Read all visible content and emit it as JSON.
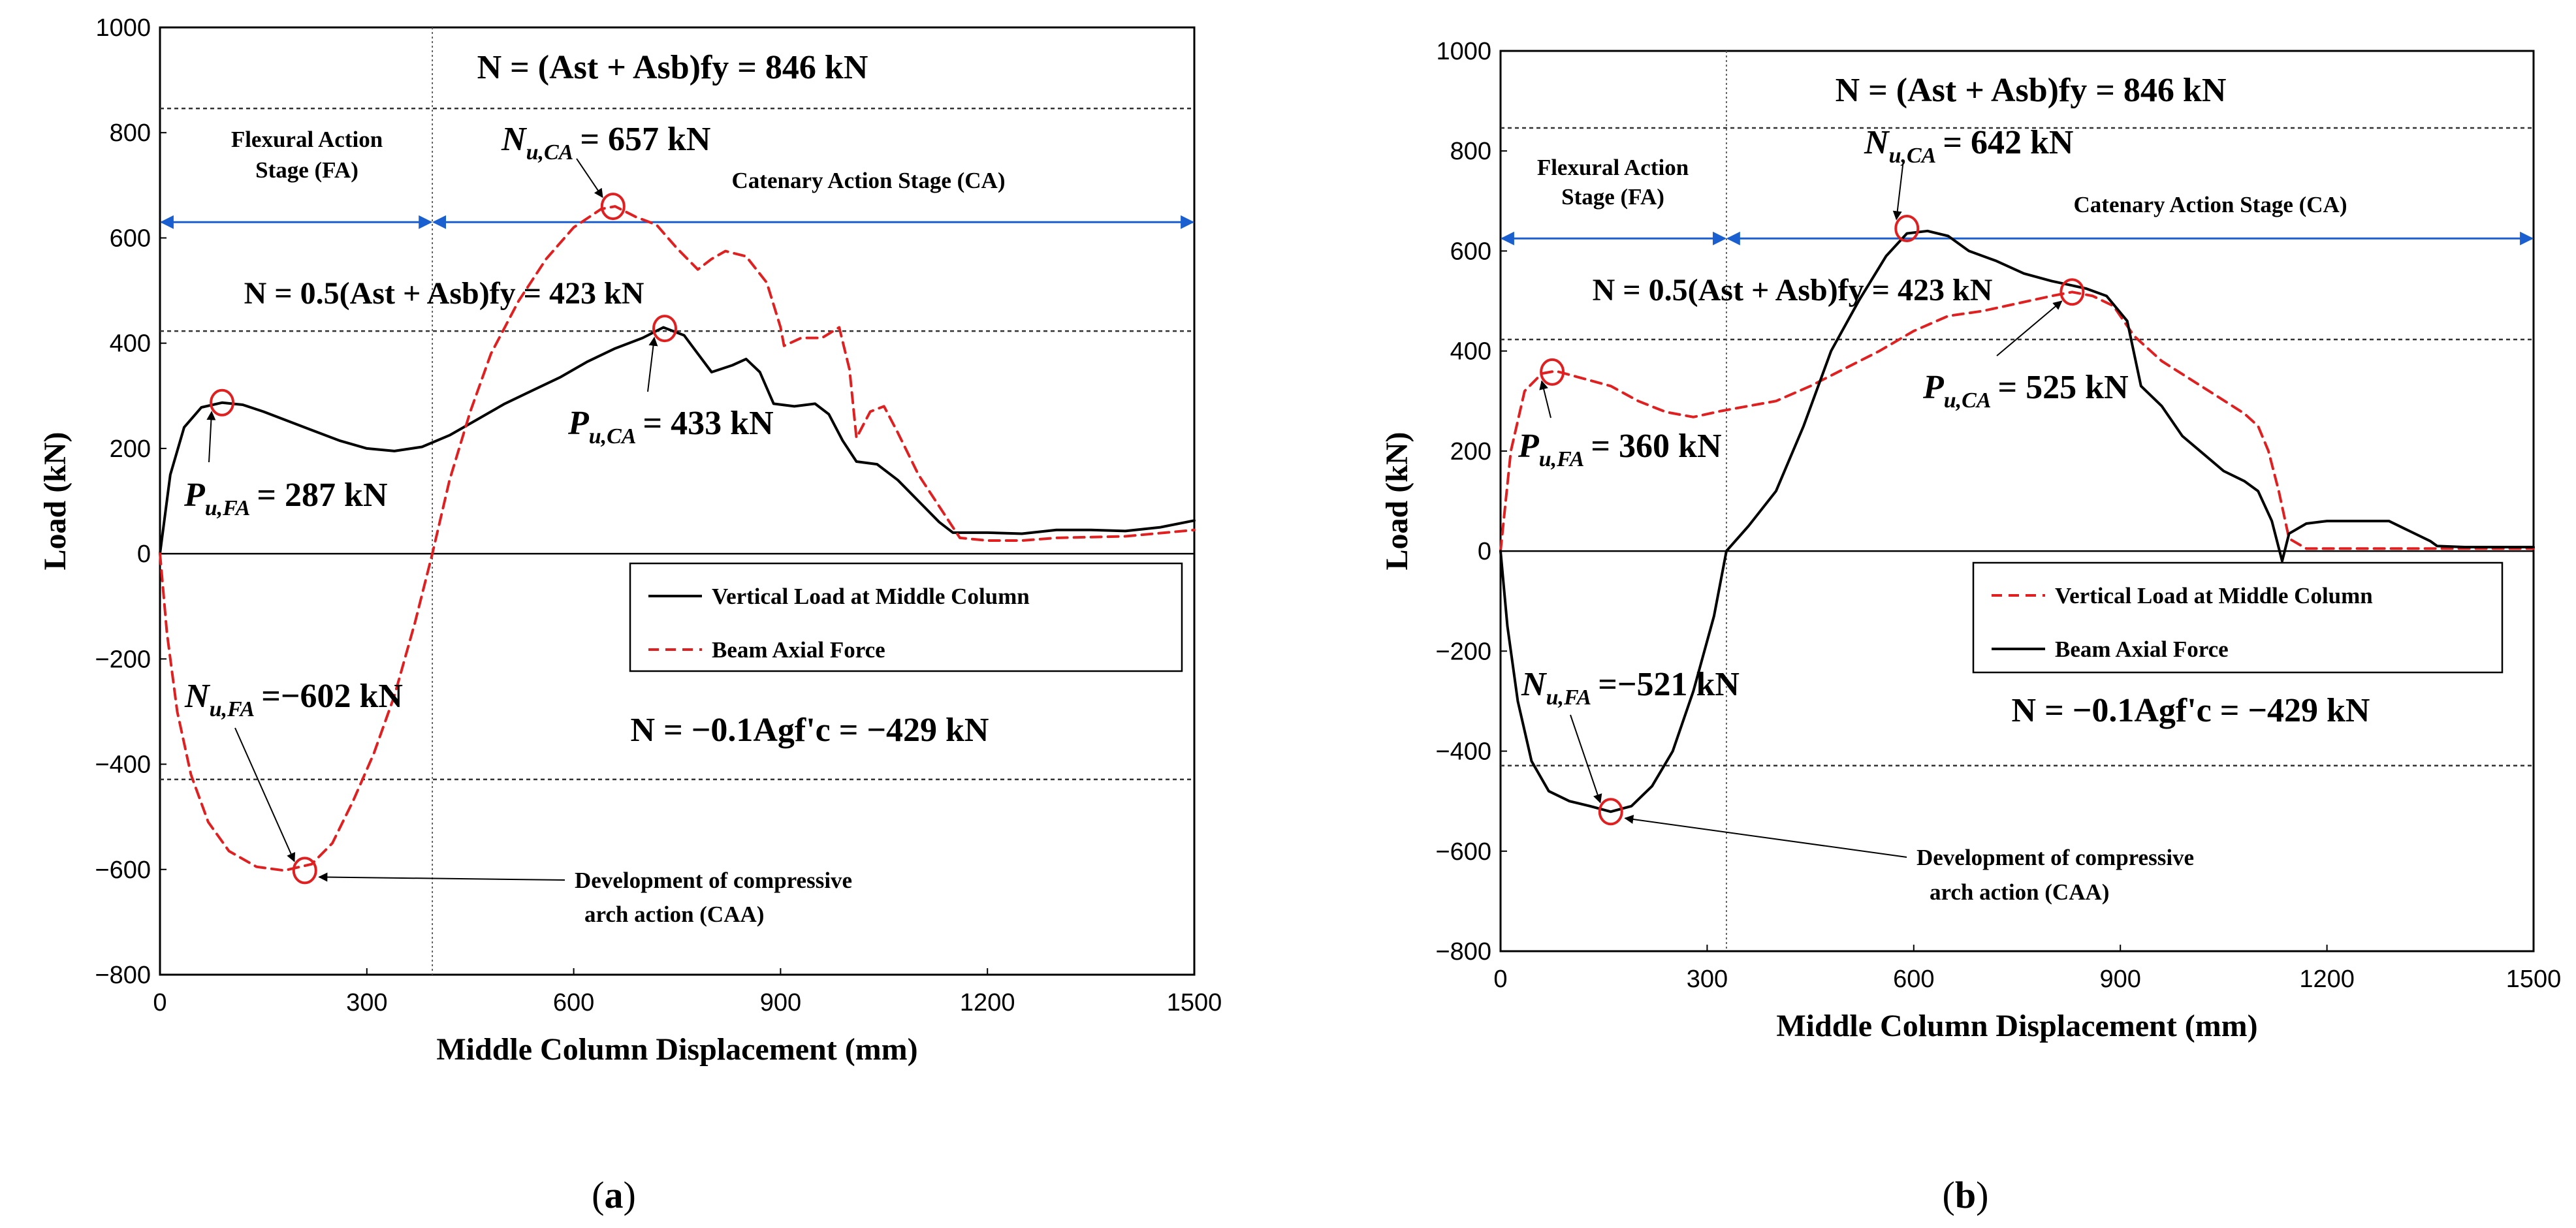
{
  "chart_data": [
    {
      "type": "line",
      "panel": "(a)",
      "panel_paren_open": "(",
      "panel_letter": "a",
      "panel_paren_close": ")",
      "xlabel": "Middle Column Displacement (mm)",
      "ylabel": "Load (kN)",
      "xlim": [
        0,
        1500
      ],
      "ylim": [
        -800,
        1000
      ],
      "x_ticks": [
        "0",
        "300",
        "600",
        "900",
        "1200",
        "1500"
      ],
      "y_ticks": [
        "1000",
        "800",
        "600",
        "400",
        "200",
        "0",
        "−200",
        "−400",
        "−600",
        "−800"
      ],
      "stage_divider_x": 395,
      "stage_arrow_y": 630,
      "stages": {
        "fa_line1": "Flexural Action",
        "fa_line2": "Stage (FA)",
        "ca": "Catenary Action Stage (CA)"
      },
      "reference_lines": [
        {
          "y": 846,
          "label_id": "yield_full"
        },
        {
          "y": 423,
          "label_id": "yield_half"
        },
        {
          "y": -429,
          "label_id": "compression_limit"
        }
      ],
      "annotations": {
        "yield_full": "N = (Ast + Asb)fy = 846 kN",
        "yield_half": "N = 0.5(Ast + Asb)fy = 423 kN",
        "compression_limit": "N = −0.1Agf'c = −429 kN",
        "p_fa_sym": "P",
        "p_fa_sub": "u,FA",
        "p_fa_val": "= 287 kN",
        "n_fa_sym": "N",
        "n_fa_sub": "u,FA",
        "n_fa_val": "=−602 kN",
        "n_ca_sym": "N",
        "n_ca_sub": "u,CA",
        "n_ca_val": "= 657 kN",
        "p_ca_sym": "P",
        "p_ca_sub": "u,CA",
        "p_ca_val": "= 433 kN",
        "caa_line1": "Development of compressive",
        "caa_line2": "arch action (CAA)"
      },
      "legend": {
        "position": "lower-right",
        "items": [
          {
            "name": "Vertical Load at Middle Column",
            "style": "solid",
            "color": "#000000"
          },
          {
            "name": "Beam Axial Force",
            "style": "dashed",
            "color": "#e02020"
          }
        ]
      },
      "series": [
        {
          "name": "Vertical Load at Middle Column",
          "color": "#000000",
          "style": "solid",
          "points": [
            [
              0,
              0
            ],
            [
              15,
              150
            ],
            [
              35,
              240
            ],
            [
              60,
              278
            ],
            [
              90,
              287
            ],
            [
              120,
              283
            ],
            [
              150,
              270
            ],
            [
              180,
              255
            ],
            [
              220,
              235
            ],
            [
              260,
              215
            ],
            [
              300,
              200
            ],
            [
              340,
              195
            ],
            [
              380,
              203
            ],
            [
              420,
              225
            ],
            [
              460,
              255
            ],
            [
              500,
              285
            ],
            [
              540,
              310
            ],
            [
              580,
              335
            ],
            [
              620,
              365
            ],
            [
              660,
              390
            ],
            [
              700,
              410
            ],
            [
              730,
              430
            ],
            [
              760,
              415
            ],
            [
              780,
              380
            ],
            [
              800,
              345
            ],
            [
              830,
              358
            ],
            [
              850,
              370
            ],
            [
              870,
              345
            ],
            [
              890,
              285
            ],
            [
              920,
              280
            ],
            [
              950,
              285
            ],
            [
              970,
              265
            ],
            [
              990,
              215
            ],
            [
              1010,
              175
            ],
            [
              1040,
              170
            ],
            [
              1070,
              140
            ],
            [
              1100,
              100
            ],
            [
              1130,
              60
            ],
            [
              1150,
              40
            ],
            [
              1200,
              40
            ],
            [
              1250,
              38
            ],
            [
              1300,
              45
            ],
            [
              1350,
              45
            ],
            [
              1400,
              43
            ],
            [
              1450,
              50
            ],
            [
              1500,
              63
            ]
          ]
        },
        {
          "name": "Beam Axial Force",
          "color": "#e02020",
          "style": "dashed",
          "points": [
            [
              0,
              0
            ],
            [
              10,
              -150
            ],
            [
              25,
              -300
            ],
            [
              45,
              -420
            ],
            [
              70,
              -510
            ],
            [
              100,
              -565
            ],
            [
              140,
              -595
            ],
            [
              180,
              -602
            ],
            [
              220,
              -590
            ],
            [
              250,
              -550
            ],
            [
              280,
              -470
            ],
            [
              310,
              -380
            ],
            [
              340,
              -270
            ],
            [
              370,
              -130
            ],
            [
              395,
              0
            ],
            [
              420,
              140
            ],
            [
              450,
              270
            ],
            [
              480,
              380
            ],
            [
              520,
              480
            ],
            [
              560,
              560
            ],
            [
              600,
              620
            ],
            [
              640,
              655
            ],
            [
              660,
              660
            ],
            [
              690,
              640
            ],
            [
              720,
              625
            ],
            [
              750,
              580
            ],
            [
              780,
              540
            ],
            [
              800,
              560
            ],
            [
              820,
              575
            ],
            [
              850,
              565
            ],
            [
              880,
              515
            ],
            [
              900,
              430
            ],
            [
              905,
              395
            ],
            [
              930,
              410
            ],
            [
              960,
              410
            ],
            [
              985,
              430
            ],
            [
              1000,
              350
            ],
            [
              1010,
              220
            ],
            [
              1030,
              270
            ],
            [
              1050,
              280
            ],
            [
              1070,
              230
            ],
            [
              1100,
              150
            ],
            [
              1130,
              90
            ],
            [
              1160,
              30
            ],
            [
              1200,
              25
            ],
            [
              1250,
              25
            ],
            [
              1300,
              30
            ],
            [
              1400,
              33
            ],
            [
              1500,
              45
            ]
          ]
        }
      ],
      "markers": [
        {
          "x": 90,
          "y": 287
        },
        {
          "x": 210,
          "y": -602
        },
        {
          "x": 657,
          "y": 660
        },
        {
          "x": 732,
          "y": 428
        }
      ]
    },
    {
      "type": "line",
      "panel": "(b)",
      "panel_paren_open": "(",
      "panel_letter": "b",
      "panel_paren_close": ")",
      "xlabel": "Middle Column Displacement (mm)",
      "ylabel": "Load (kN)",
      "xlim": [
        0,
        1500
      ],
      "ylim": [
        -800,
        1000
      ],
      "x_ticks": [
        "0",
        "300",
        "600",
        "900",
        "1200",
        "1500"
      ],
      "y_ticks": [
        "1000",
        "800",
        "600",
        "400",
        "200",
        "0",
        "−200",
        "−400",
        "−600",
        "−800"
      ],
      "stage_divider_x": 328,
      "stage_arrow_y": 625,
      "stages": {
        "fa_line1": "Flexural Action",
        "fa_line2": "Stage (FA)",
        "ca": "Catenary Action Stage (CA)"
      },
      "reference_lines": [
        {
          "y": 846,
          "label_id": "yield_full"
        },
        {
          "y": 423,
          "label_id": "yield_half"
        },
        {
          "y": -429,
          "label_id": "compression_limit"
        }
      ],
      "annotations": {
        "yield_full": "N = (Ast + Asb)fy = 846 kN",
        "yield_half": "N = 0.5(Ast + Asb)fy = 423 kN",
        "compression_limit": "N = −0.1Agf'c = −429 kN",
        "p_fa_sym": "P",
        "p_fa_sub": "u,FA",
        "p_fa_val": "= 360 kN",
        "n_fa_sym": "N",
        "n_fa_sub": "u,FA",
        "n_fa_val": "=−521 kN",
        "n_ca_sym": "N",
        "n_ca_sub": "u,CA",
        "n_ca_val": "= 642 kN",
        "p_ca_sym": "P",
        "p_ca_sub": "u,CA",
        "p_ca_val": "= 525 kN",
        "caa_line1": "Development of compressive",
        "caa_line2": "arch action (CAA)"
      },
      "legend": {
        "position": "right",
        "items": [
          {
            "name": "Vertical Load at Middle Column",
            "style": "dashed",
            "color": "#e02020"
          },
          {
            "name": "Beam Axial Force",
            "style": "solid",
            "color": "#000000"
          }
        ]
      },
      "series": [
        {
          "name": "Vertical Load at Middle Column",
          "color": "#e02020",
          "style": "dashed",
          "points": [
            [
              0,
              0
            ],
            [
              15,
              200
            ],
            [
              35,
              320
            ],
            [
              60,
              355
            ],
            [
              80,
              360
            ],
            [
              120,
              345
            ],
            [
              160,
              330
            ],
            [
              200,
              300
            ],
            [
              240,
              278
            ],
            [
              280,
              268
            ],
            [
              320,
              280
            ],
            [
              360,
              290
            ],
            [
              400,
              300
            ],
            [
              450,
              330
            ],
            [
              500,
              365
            ],
            [
              550,
              400
            ],
            [
              600,
              440
            ],
            [
              650,
              470
            ],
            [
              700,
              480
            ],
            [
              750,
              495
            ],
            [
              800,
              510
            ],
            [
              830,
              518
            ],
            [
              860,
              510
            ],
            [
              890,
              490
            ],
            [
              920,
              430
            ],
            [
              960,
              380
            ],
            [
              1000,
              345
            ],
            [
              1040,
              310
            ],
            [
              1080,
              275
            ],
            [
              1100,
              250
            ],
            [
              1115,
              200
            ],
            [
              1130,
              120
            ],
            [
              1145,
              25
            ],
            [
              1170,
              5
            ],
            [
              1200,
              5
            ],
            [
              1300,
              5
            ],
            [
              1400,
              5
            ],
            [
              1500,
              5
            ]
          ]
        },
        {
          "name": "Beam Axial Force",
          "color": "#000000",
          "style": "solid",
          "points": [
            [
              0,
              0
            ],
            [
              10,
              -150
            ],
            [
              25,
              -300
            ],
            [
              45,
              -420
            ],
            [
              70,
              -480
            ],
            [
              100,
              -500
            ],
            [
              130,
              -510
            ],
            [
              160,
              -521
            ],
            [
              190,
              -510
            ],
            [
              220,
              -470
            ],
            [
              250,
              -400
            ],
            [
              280,
              -280
            ],
            [
              310,
              -130
            ],
            [
              328,
              0
            ],
            [
              360,
              50
            ],
            [
              400,
              120
            ],
            [
              440,
              250
            ],
            [
              480,
              400
            ],
            [
              520,
              500
            ],
            [
              560,
              590
            ],
            [
              590,
              635
            ],
            [
              620,
              640
            ],
            [
              650,
              630
            ],
            [
              680,
              600
            ],
            [
              720,
              580
            ],
            [
              760,
              555
            ],
            [
              800,
              540
            ],
            [
              850,
              525
            ],
            [
              880,
              510
            ],
            [
              910,
              460
            ],
            [
              930,
              330
            ],
            [
              960,
              290
            ],
            [
              990,
              230
            ],
            [
              1020,
              195
            ],
            [
              1050,
              160
            ],
            [
              1080,
              140
            ],
            [
              1100,
              120
            ],
            [
              1120,
              60
            ],
            [
              1135,
              -20
            ],
            [
              1145,
              35
            ],
            [
              1170,
              55
            ],
            [
              1200,
              60
            ],
            [
              1250,
              60
            ],
            [
              1290,
              60
            ],
            [
              1320,
              40
            ],
            [
              1350,
              20
            ],
            [
              1360,
              10
            ],
            [
              1400,
              8
            ],
            [
              1500,
              8
            ]
          ]
        }
      ],
      "markers": [
        {
          "x": 75,
          "y": 358
        },
        {
          "x": 160,
          "y": -521
        },
        {
          "x": 590,
          "y": 645
        },
        {
          "x": 830,
          "y": 518
        }
      ]
    }
  ]
}
